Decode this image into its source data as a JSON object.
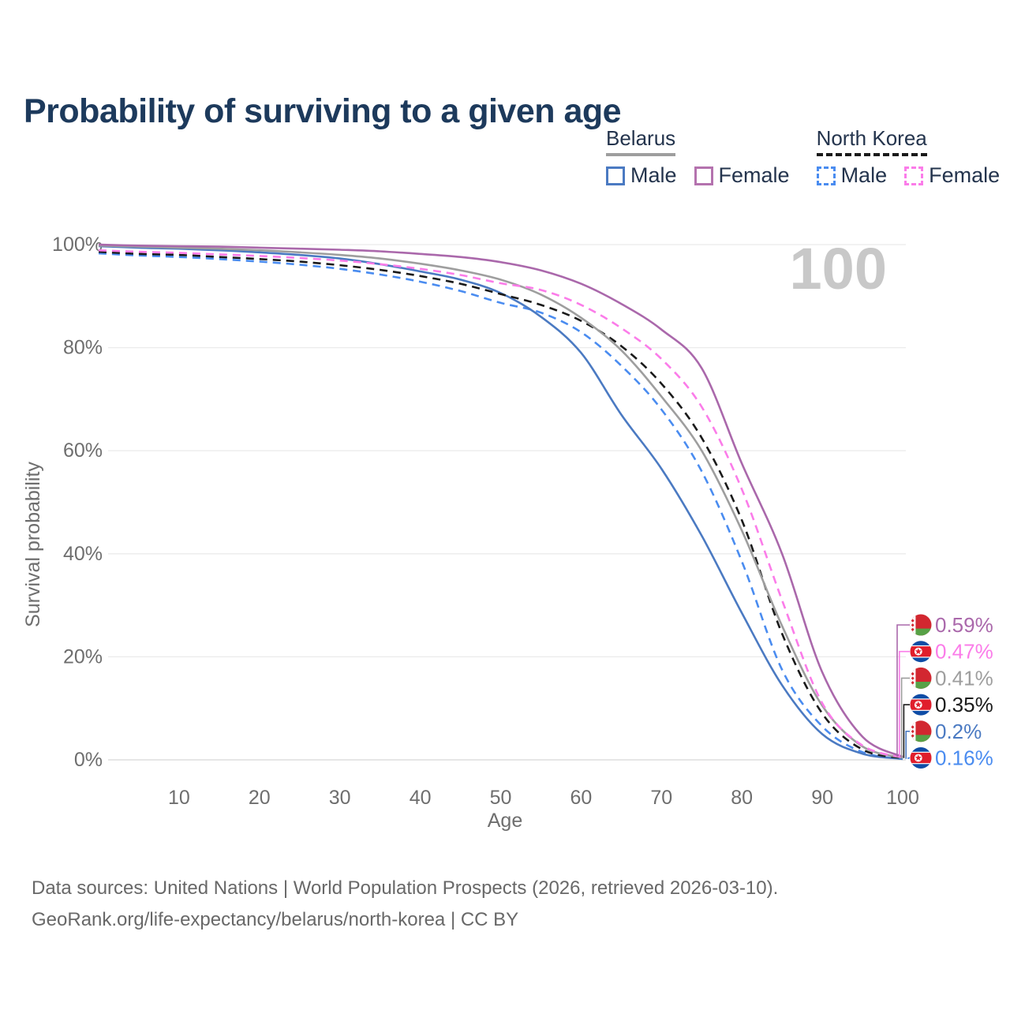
{
  "title": "Probability of surviving to a given age",
  "watermark": "100",
  "legend": {
    "groups": [
      {
        "label": "Belarus",
        "line_style": "solid",
        "line_color": "#9e9e9e",
        "items": [
          {
            "label": "Male",
            "color": "#4b7ac2",
            "style": "solid"
          },
          {
            "label": "Female",
            "color": "#b472ae",
            "style": "solid"
          }
        ]
      },
      {
        "label": "North Korea",
        "line_style": "dashed",
        "line_color": "#1a1a1a",
        "items": [
          {
            "label": "Male",
            "color": "#4a8cf0",
            "style": "dashed"
          },
          {
            "label": "Female",
            "color": "#fb7ce9",
            "style": "dashed"
          }
        ]
      }
    ]
  },
  "chart_data": {
    "type": "line",
    "title": "Probability of surviving to a given age",
    "xlabel": "Age",
    "ylabel": "Survival probability",
    "xlim": [
      0,
      100
    ],
    "ylim": [
      0,
      100
    ],
    "grid": "horizontal",
    "legend_position": "top-right",
    "x_ticks": [
      10,
      20,
      30,
      40,
      50,
      60,
      70,
      80,
      90,
      100
    ],
    "y_ticks": [
      {
        "value": 0,
        "label": "0%"
      },
      {
        "value": 20,
        "label": "20%"
      },
      {
        "value": 40,
        "label": "40%"
      },
      {
        "value": 60,
        "label": "60%"
      },
      {
        "value": 80,
        "label": "80%"
      },
      {
        "value": 100,
        "label": "100%"
      }
    ],
    "x": [
      0,
      5,
      10,
      15,
      20,
      25,
      30,
      35,
      40,
      45,
      50,
      55,
      60,
      65,
      70,
      75,
      80,
      85,
      90,
      95,
      100
    ],
    "series": [
      {
        "name": "Belarus — Female",
        "country": "Belarus",
        "flag": "belarus",
        "color": "#aa68ab",
        "dash": "solid",
        "end_label": "0.59%",
        "values": [
          100,
          99.8,
          99.7,
          99.6,
          99.4,
          99.2,
          99.0,
          98.7,
          98.2,
          97.6,
          96.6,
          95.0,
          92.4,
          88.5,
          83.5,
          76.0,
          57.5,
          40.0,
          17.0,
          4.5,
          0.59
        ]
      },
      {
        "name": "North Korea — Female",
        "country": "North Korea",
        "flag": "north-korea",
        "color": "#fb7ce9",
        "dash": "dashed",
        "end_label": "0.47%",
        "values": [
          98.9,
          98.6,
          98.4,
          98.1,
          97.8,
          97.4,
          96.9,
          96.2,
          95.3,
          94.1,
          92.5,
          91.2,
          88.3,
          83.8,
          77.8,
          68.5,
          52.5,
          31.0,
          11.0,
          2.8,
          0.47
        ]
      },
      {
        "name": "Belarus — Both sexes",
        "country": "Belarus",
        "flag": "belarus",
        "color": "#9e9e9e",
        "dash": "solid",
        "end_label": "0.41%",
        "values": [
          99.8,
          99.6,
          99.4,
          99.2,
          98.9,
          98.5,
          98.0,
          97.3,
          96.3,
          95.0,
          93.2,
          90.3,
          85.8,
          79.5,
          70.5,
          60.0,
          44.5,
          26.0,
          10.5,
          2.6,
          0.41
        ]
      },
      {
        "name": "North Korea — Both sexes",
        "country": "North Korea",
        "flag": "north-korea",
        "color": "#1a1a1a",
        "dash": "dashed",
        "end_label": "0.35%",
        "values": [
          98.6,
          98.2,
          98.0,
          97.6,
          97.2,
          96.7,
          96.0,
          95.1,
          93.9,
          92.4,
          90.4,
          88.3,
          85.2,
          80.3,
          73.0,
          62.5,
          46.5,
          24.5,
          9.0,
          2.0,
          0.35
        ]
      },
      {
        "name": "Belarus — Male",
        "country": "Belarus",
        "flag": "belarus",
        "color": "#4b7ac2",
        "dash": "solid",
        "end_label": "0.2%",
        "values": [
          99.7,
          99.4,
          99.2,
          98.9,
          98.5,
          98.0,
          97.3,
          96.2,
          94.8,
          93.2,
          90.6,
          86.0,
          79.0,
          67.0,
          56.5,
          43.5,
          28.5,
          14.5,
          5.0,
          1.2,
          0.2
        ]
      },
      {
        "name": "North Korea — Male",
        "country": "North Korea",
        "flag": "north-korea",
        "color": "#4a8cf0",
        "dash": "dashed",
        "end_label": "0.16%",
        "values": [
          98.3,
          97.9,
          97.6,
          97.2,
          96.7,
          96.1,
          95.3,
          94.2,
          92.8,
          91.0,
          88.7,
          86.8,
          83.0,
          76.5,
          68.0,
          56.0,
          38.5,
          17.5,
          6.5,
          1.5,
          0.16
        ]
      }
    ]
  },
  "footer": {
    "line1": "Data sources: United Nations | World Population Prospects (2026, retrieved 2026-03-10).",
    "line2": "GeoRank.org/life-expectancy/belarus/north-korea | CC BY"
  }
}
